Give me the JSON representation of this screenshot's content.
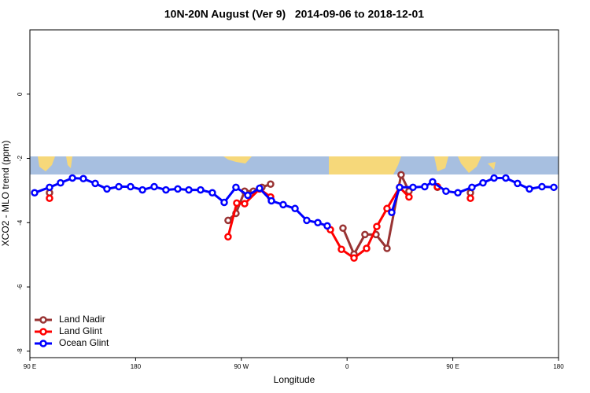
{
  "chart_data": {
    "type": "line",
    "title": "10N-20N August (Ver 9)   2014-09-06 to 2018-12-01",
    "x_label": "Longitude",
    "y_label": "XCO2 - MLO trend (ppm)",
    "xlim": [
      90,
      540
    ],
    "ylim": [
      -8.2,
      2
    ],
    "xticks": [
      {
        "value": 90,
        "label": "90 E"
      },
      180,
      {
        "value": 270,
        "label": "90 W"
      },
      {
        "value": 360,
        "label": "0"
      },
      {
        "value": 450,
        "label": "90 E"
      },
      {
        "value": 540,
        "label": "180"
      }
    ],
    "yticks": [
      0,
      -2,
      -4,
      -6,
      -8
    ],
    "legend": "bottom-left",
    "series": [
      {
        "name": "Land Nadir",
        "color": "#993333",
        "x": [
          106.7,
          null,
          258.7,
          265.4,
          272.8,
          280.2,
          287.5,
          294.9,
          null,
          356.5,
          365.9,
          375.2,
          384.6,
          394.0,
          406.0,
          412.7,
          null,
          436.9,
          null,
          465.0
        ],
        "values": [
          -3.07,
          null,
          -3.93,
          -3.71,
          -3.02,
          -3.02,
          -2.9,
          -2.8,
          null,
          -4.17,
          -4.98,
          -4.37,
          -4.37,
          -4.8,
          -2.51,
          -3.02,
          null,
          -2.9,
          null,
          -3.07
        ]
      },
      {
        "name": "Land Glint",
        "color": "#ff0000",
        "x": [
          106.7,
          null,
          258.7,
          266.1,
          272.8,
          285.5,
          294.9,
          null,
          345.8,
          355.2,
          365.9,
          376.6,
          385.3,
          394.0,
          404.7,
          412.7,
          null,
          436.9,
          null,
          465.0
        ],
        "values": [
          -3.24,
          null,
          -4.44,
          -3.39,
          -3.41,
          -2.95,
          -3.2,
          null,
          -4.22,
          -4.83,
          -5.1,
          -4.8,
          -4.12,
          -3.56,
          -2.9,
          -3.2,
          null,
          -2.88,
          null,
          -3.24
        ]
      },
      {
        "name": "Ocean Glint",
        "color": "#0000ff",
        "x": [
          94.0,
          106.7,
          116.1,
          126.2,
          135.5,
          145.6,
          155.6,
          165.7,
          175.7,
          185.8,
          195.8,
          205.8,
          215.9,
          225.3,
          235.3,
          245.3,
          255.4,
          265.4,
          275.5,
          285.5,
          295.6,
          305.6,
          315.7,
          325.7,
          335.1,
          343.1,
          null,
          398.0,
          404.7,
          416.1,
          426.1,
          432.8,
          444.2,
          454.3,
          466.3,
          475.7,
          485.1,
          495.1,
          505.1,
          515.2,
          525.9,
          536.0
        ],
        "values": [
          -3.07,
          -2.9,
          -2.76,
          -2.61,
          -2.63,
          -2.78,
          -2.95,
          -2.88,
          -2.88,
          -2.98,
          -2.88,
          -2.98,
          -2.95,
          -2.98,
          -2.98,
          -3.07,
          -3.37,
          -2.9,
          -3.15,
          -2.93,
          -3.32,
          -3.44,
          -3.56,
          -3.93,
          -4.0,
          -4.1,
          null,
          -3.68,
          -2.9,
          -2.9,
          -2.88,
          -2.73,
          -3.02,
          -3.07,
          -2.9,
          -2.76,
          -2.61,
          -2.61,
          -2.78,
          -2.95,
          -2.88,
          -2.9
        ]
      }
    ]
  }
}
